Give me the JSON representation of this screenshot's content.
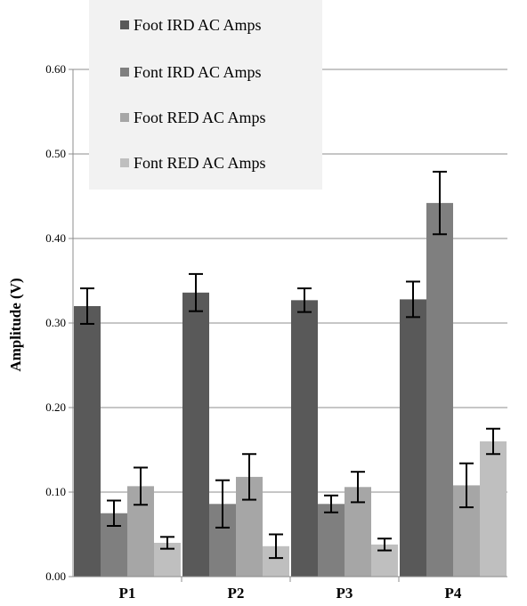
{
  "chart_data": {
    "type": "bar",
    "xlabel": "",
    "ylabel": "Amplitude (V)",
    "ylim": [
      0,
      0.6
    ],
    "yticks": [
      "0.00",
      "0.10",
      "0.20",
      "0.30",
      "0.40",
      "0.50",
      "0.60"
    ],
    "grid": "horizontal",
    "legend_position": "top-left",
    "categories": [
      "P1",
      "P2",
      "P3",
      "P4"
    ],
    "series": [
      {
        "name": "Foot IRD AC Amps",
        "color": "#595959",
        "values": [
          0.32,
          0.336,
          0.327,
          0.328
        ],
        "errors": [
          0.021,
          0.022,
          0.014,
          0.021
        ]
      },
      {
        "name": "Font IRD AC Amps",
        "color": "#7f7f7f",
        "values": [
          0.075,
          0.086,
          0.086,
          0.442
        ],
        "errors": [
          0.015,
          0.028,
          0.01,
          0.037
        ]
      },
      {
        "name": "Foot RED AC Amps",
        "color": "#a6a6a6",
        "values": [
          0.107,
          0.118,
          0.106,
          0.108
        ],
        "errors": [
          0.022,
          0.027,
          0.018,
          0.026
        ]
      },
      {
        "name": "Font RED AC Amps",
        "color": "#bfbfbf",
        "values": [
          0.04,
          0.036,
          0.038,
          0.16
        ],
        "errors": [
          0.007,
          0.014,
          0.007,
          0.015
        ]
      }
    ]
  }
}
